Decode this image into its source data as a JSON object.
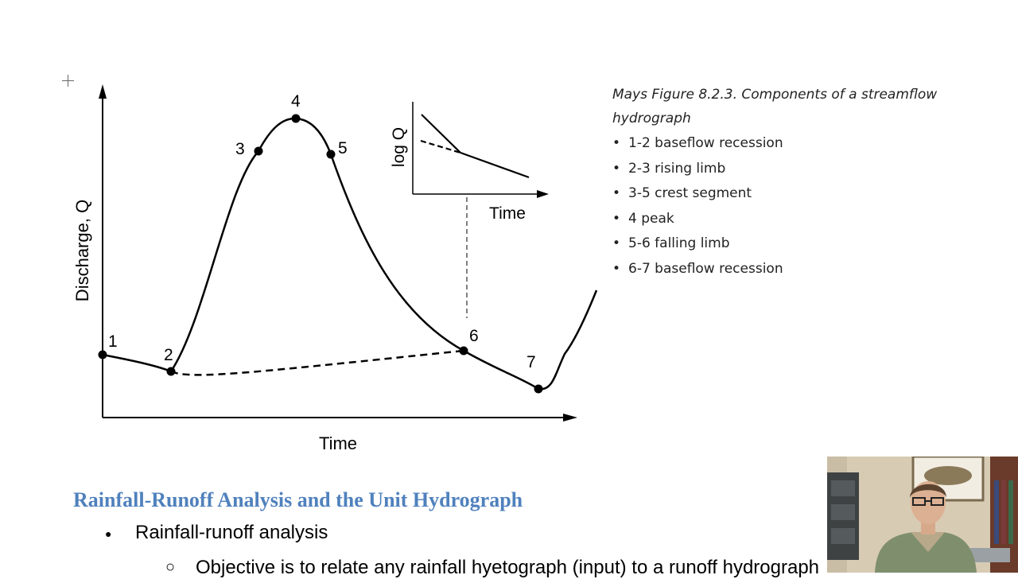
{
  "figure": {
    "y_axis_label": "Discharge, Q",
    "x_axis_label": "Time",
    "point_labels": [
      "1",
      "2",
      "3",
      "4",
      "5",
      "6",
      "7"
    ],
    "inset": {
      "y_axis_label": "log Q",
      "x_axis_label": "Time"
    }
  },
  "caption": "Mays Figure 8.2.3. Components of a streamflow hydrograph",
  "components": [
    "1-2 baseflow recession",
    "2-3 rising limb",
    "3-5 crest segment",
    "4 peak",
    "5-6 falling limb",
    "6-7 baseflow recession"
  ],
  "document": {
    "heading": "Rainfall-Runoff Analysis and the Unit Hydrograph",
    "bullet_marker": "●",
    "bullet": "Rainfall-runoff analysis",
    "sub_bullet_marker": "○",
    "sub_bullet": "Objective is to relate any rainfall hyetograph (input) to a runoff hydrograph"
  },
  "icons": {
    "crosshair": "crosshair-cursor-icon",
    "webcam": "presenter-webcam-video"
  }
}
